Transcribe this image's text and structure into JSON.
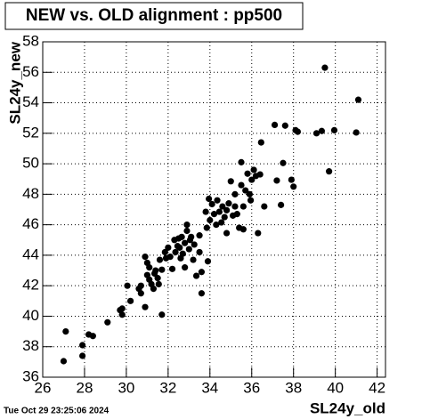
{
  "chart_data": {
    "type": "scatter",
    "title": "NEW vs. OLD alignment : pp500",
    "x_label": "SL24y_old",
    "y_label": "SL24y_new",
    "footer": "Tue Oct 29 23:25:06 2024",
    "xlim": [
      26,
      42.4
    ],
    "ylim": [
      36,
      58
    ],
    "xticks": [
      26,
      28,
      30,
      32,
      34,
      36,
      38,
      40,
      42
    ],
    "yticks": [
      36,
      38,
      40,
      42,
      44,
      46,
      48,
      50,
      52,
      54,
      56,
      58
    ],
    "grid": true,
    "color": "#000000",
    "x": [
      27.0,
      27.1,
      27.9,
      27.9,
      28.2,
      28.4,
      29.1,
      29.7,
      29.8,
      29.8,
      30.05,
      30.2,
      30.6,
      30.7,
      30.7,
      30.9,
      30.9,
      31.0,
      31.0,
      31.1,
      31.1,
      31.2,
      31.3,
      31.35,
      31.4,
      31.5,
      31.55,
      31.6,
      31.7,
      31.7,
      31.85,
      31.9,
      32.0,
      32.1,
      32.2,
      32.3,
      32.35,
      32.45,
      32.5,
      32.55,
      32.6,
      32.65,
      32.7,
      32.8,
      32.8,
      32.9,
      32.9,
      33.0,
      33.05,
      33.1,
      33.2,
      33.25,
      33.35,
      33.5,
      33.5,
      33.6,
      33.6,
      33.8,
      33.85,
      33.9,
      33.95,
      34.0,
      34.1,
      34.2,
      34.3,
      34.35,
      34.45,
      34.55,
      34.6,
      34.7,
      34.8,
      34.8,
      34.9,
      35.0,
      35.1,
      35.2,
      35.2,
      35.3,
      35.4,
      35.5,
      35.5,
      35.6,
      35.6,
      35.7,
      35.8,
      35.9,
      35.95,
      36.0,
      36.1,
      36.2,
      36.3,
      36.4,
      36.45,
      36.6,
      37.1,
      37.2,
      37.4,
      37.5,
      37.6,
      37.9,
      38.0,
      38.1,
      38.2,
      39.1,
      39.35,
      39.5,
      39.7,
      39.95,
      41.0,
      41.1
    ],
    "values": [
      37.05,
      39.0,
      38.1,
      37.4,
      38.8,
      38.7,
      39.6,
      40.4,
      40.5,
      40.1,
      42.0,
      41.0,
      41.8,
      41.5,
      42.0,
      40.6,
      43.9,
      43.5,
      42.7,
      43.2,
      42.4,
      42.1,
      41.8,
      42.8,
      43.0,
      42.5,
      42.1,
      43.7,
      43.05,
      40.1,
      44.2,
      43.8,
      44.5,
      43.9,
      43.1,
      45.0,
      44.2,
      44.6,
      45.1,
      44.5,
      43.8,
      45.2,
      44.1,
      43.2,
      44.8,
      45.6,
      46.0,
      44.4,
      45.0,
      45.2,
      43.7,
      44.7,
      42.65,
      44.2,
      45.3,
      42.9,
      41.5,
      46.85,
      45.8,
      43.6,
      47.7,
      46.3,
      47.35,
      46.7,
      46.0,
      47.6,
      46.85,
      46.15,
      47.2,
      46.5,
      45.45,
      46.95,
      47.4,
      48.85,
      46.6,
      48.0,
      47.2,
      46.7,
      45.8,
      48.6,
      50.1,
      47.2,
      45.7,
      48.25,
      49.35,
      48.0,
      47.6,
      48.95,
      49.6,
      49.2,
      45.45,
      49.3,
      51.4,
      47.2,
      52.55,
      48.9,
      47.3,
      50.05,
      52.5,
      48.95,
      48.5,
      52.2,
      52.1,
      52.0,
      52.15,
      56.3,
      49.5,
      52.2,
      52.05,
      54.2
    ]
  }
}
